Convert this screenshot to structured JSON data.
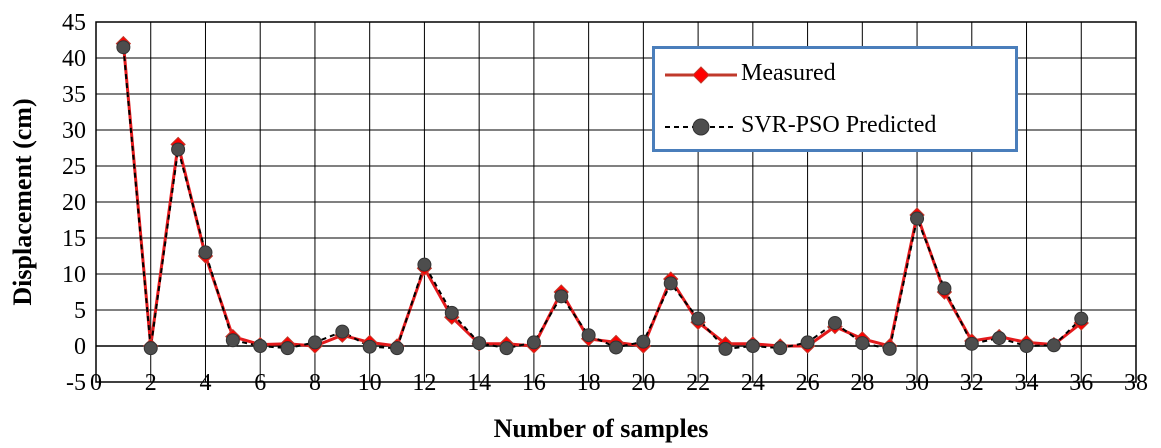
{
  "chart_data": {
    "type": "line",
    "title": "",
    "xlabel": "Number of samples",
    "ylabel": "Displacement (cm)",
    "xlim": [
      0,
      38
    ],
    "ylim": [
      -5,
      45
    ],
    "xticks": [
      0,
      2,
      4,
      6,
      8,
      10,
      12,
      14,
      16,
      18,
      20,
      22,
      24,
      26,
      28,
      30,
      32,
      34,
      36,
      38
    ],
    "yticks": [
      -5,
      0,
      5,
      10,
      15,
      20,
      25,
      30,
      35,
      40,
      45
    ],
    "grid": true,
    "legend_position": "top-right",
    "x": [
      1,
      2,
      3,
      4,
      5,
      6,
      7,
      8,
      9,
      10,
      11,
      12,
      13,
      14,
      15,
      16,
      17,
      18,
      19,
      20,
      21,
      22,
      23,
      24,
      25,
      26,
      27,
      28,
      29,
      30,
      31,
      32,
      33,
      34,
      35,
      36
    ],
    "series": [
      {
        "name": "Measured",
        "color": "#e31a1c",
        "marker": "diamond",
        "line": "solid",
        "values": [
          42,
          0,
          28,
          12.5,
          1.3,
          0.2,
          0.3,
          0,
          1.5,
          0.5,
          0,
          10.8,
          4,
          0.3,
          0.3,
          0,
          7.5,
          1,
          0.5,
          0,
          9.3,
          3.3,
          0.3,
          0.3,
          0,
          0,
          2.7,
          1,
          0,
          18.2,
          7.5,
          0.7,
          1.3,
          0.5,
          0.2,
          3.2
        ]
      },
      {
        "name": "SVR-PSO Predicted",
        "color": "#000000",
        "marker": "circle",
        "marker_color": "#4d4d4d",
        "line": "dashed",
        "values": [
          41.5,
          -0.3,
          27.3,
          13,
          0.8,
          0,
          -0.3,
          0.5,
          2,
          -0.1,
          -0.3,
          11.3,
          4.6,
          0.4,
          -0.3,
          0.5,
          6.9,
          1.5,
          -0.2,
          0.6,
          8.7,
          3.8,
          -0.4,
          0,
          -0.3,
          0.5,
          3.2,
          0.4,
          -0.4,
          17.7,
          8,
          0.3,
          1.1,
          0,
          0.1,
          3.8
        ]
      }
    ]
  }
}
